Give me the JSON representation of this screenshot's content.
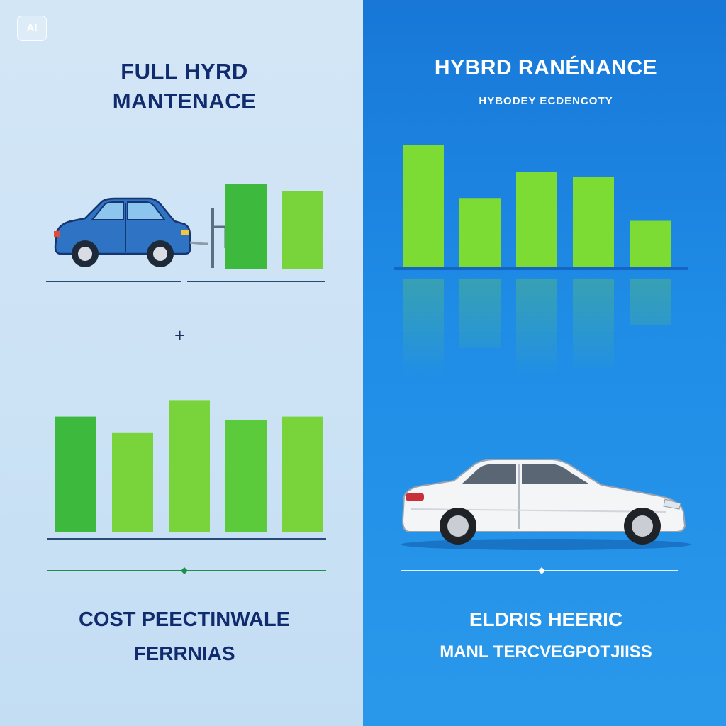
{
  "badge": {
    "label": "AI"
  },
  "left_panel": {
    "title_line1": "FULL HYRD",
    "title_line2": "MANTENACE",
    "plus_symbol": "+",
    "bottom_line1": "COST PEECTINWALE",
    "bottom_line2": "FERRNIAS",
    "icons": [
      "blue-hatchback-car-icon",
      "charging-plug-icon",
      "plus-icon"
    ]
  },
  "right_panel": {
    "title": "HYBRD RANÉNANCE",
    "subtitle": "HYBODEY ECDENCOTY",
    "bottom_line1": "ELDRIS HEERIC",
    "bottom_line2": "MANL TERCVEGPOTJIISS",
    "icons": [
      "white-sedan-car-icon"
    ]
  },
  "colors": {
    "left_background": "#cde3f5",
    "right_background": "#1f88e3",
    "bar_dark_green": "#3cb83c",
    "bar_light_green": "#7fd83a",
    "title_navy": "#102c6e"
  },
  "chart_data": [
    {
      "type": "bar",
      "series": [
        {
          "values": [
            6.5,
            6.0
          ]
        }
      ],
      "bar_colors": [
        "#3dba3d",
        "#78d43a"
      ]
    },
    {
      "type": "bar",
      "series": [
        {
          "values": [
            7.0,
            6.0,
            8.0,
            6.8,
            7.0
          ]
        }
      ],
      "bar_colors": [
        "#3dba3d",
        "#78d43a",
        "#78d43a",
        "#5ccb3b",
        "#78d43a"
      ]
    },
    {
      "type": "bar",
      "series": [
        {
          "values": [
            8.0,
            4.5,
            6.2,
            5.9,
            3.0
          ]
        }
      ],
      "bar_colors": [
        "#7ddc34",
        "#7ddc34",
        "#7ddc34",
        "#7ddc34",
        "#7ddc34"
      ]
    }
  ]
}
